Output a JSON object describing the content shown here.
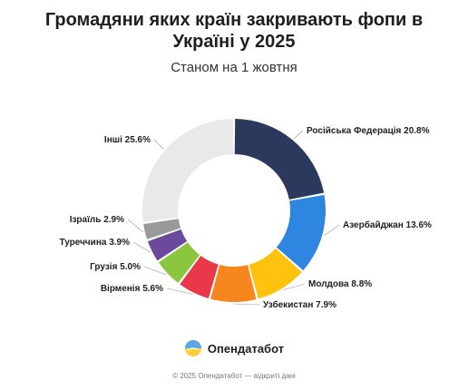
{
  "title_lines": [
    "Громадяни яких країн закривають фопи в",
    "Україні у 2025"
  ],
  "subtitle": "Станом на 1 жовтня",
  "brand": {
    "name": "Опендатабот",
    "logo_icon": "opendatabot-logo-icon"
  },
  "footer": "© 2025 Опендатабот — відкриті дані",
  "chart_data": {
    "type": "pie",
    "style": "donut",
    "title": "Громадяни яких країн закривають фопи в Україні у 2025",
    "subtitle": "Станом на 1 жовтня",
    "unit": "%",
    "slices": [
      {
        "label": "Російська Федерація",
        "value": 20.8,
        "color": "#2b3a5c",
        "label_text": "Російська Федерація 20.8%"
      },
      {
        "label": "Азербайджан",
        "value": 13.6,
        "color": "#2f86e0",
        "label_text": "Азербайджан 13.6%"
      },
      {
        "label": "Молдова",
        "value": 8.8,
        "color": "#ffc20e",
        "label_text": "Молдова 8.8%"
      },
      {
        "label": "Узбекистан",
        "value": 7.9,
        "color": "#f7861e",
        "label_text": "Узбекистан 7.9%"
      },
      {
        "label": "Вірменія",
        "value": 5.6,
        "color": "#e8384a",
        "label_text": "Вірменія 5.6%"
      },
      {
        "label": "Грузія",
        "value": 5.0,
        "color": "#8cc63f",
        "label_text": "Грузія 5.0%"
      },
      {
        "label": "Туреччина",
        "value": 3.9,
        "color": "#6b4a9e",
        "label_text": "Туреччина 3.9%"
      },
      {
        "label": "Ізраїль",
        "value": 2.9,
        "color": "#9a9a9a",
        "label_text": "Ізраїль 2.9%"
      },
      {
        "label": "Інші",
        "value": 25.6,
        "color": "#cfcfcf",
        "label_text": "Інші 25.6%"
      }
    ],
    "highlight_color": "#e9e9e9",
    "legend": "none"
  }
}
